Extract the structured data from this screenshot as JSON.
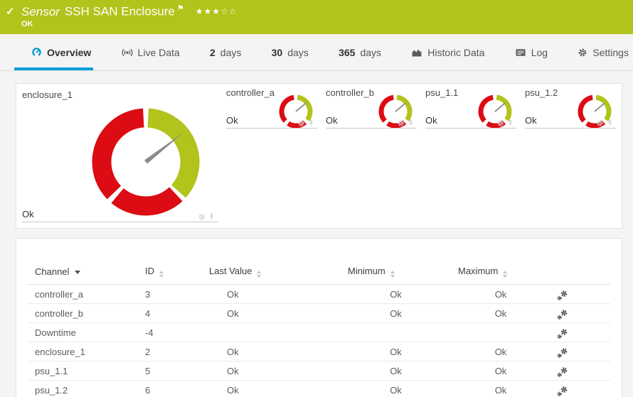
{
  "colors": {
    "status_green": "#b2c31b",
    "alarm_red": "#dc0b14",
    "accent_blue": "#0d9bd8",
    "needle_gray": "#8c8c8c"
  },
  "header": {
    "kind": "Sensor",
    "title": "SSH SAN Enclosure",
    "status": "OK",
    "stars_filled": 3,
    "stars_total": 5
  },
  "icons": {
    "status_check": "check-mark",
    "flag": "priority-flag",
    "overview": "gauge",
    "live_data": "broadcast",
    "historic_data": "area-chart",
    "log": "list",
    "settings": "gear",
    "tile_actions": [
      "gear",
      "pin"
    ],
    "row_action": "channel-settings-gears"
  },
  "tabs": [
    {
      "label": "Overview",
      "active": true
    },
    {
      "label": "Live Data"
    },
    {
      "num": "2",
      "label": "days"
    },
    {
      "num": "30",
      "label": "days"
    },
    {
      "num": "365",
      "label": "days"
    },
    {
      "label": "Historic Data"
    },
    {
      "label": "Log"
    },
    {
      "label": "Settings"
    }
  ],
  "gauges": [
    {
      "name": "enclosure_1",
      "value": "Ok",
      "size": "large",
      "needle_angle": 52,
      "segments": [
        {
          "color": "alarm_red",
          "from": 137,
          "to": 220
        },
        {
          "color": "alarm_red",
          "from": 226,
          "to": 357
        },
        {
          "color": "status_green",
          "from": 3,
          "to": 132
        }
      ]
    },
    {
      "name": "controller_a",
      "value": "Ok",
      "size": "small",
      "needle_angle": 50,
      "segments": [
        {
          "color": "alarm_red",
          "from": 140,
          "to": 213
        },
        {
          "color": "alarm_red",
          "from": 228,
          "to": 352
        },
        {
          "color": "status_green",
          "from": 6,
          "to": 126
        }
      ]
    },
    {
      "name": "controller_b",
      "value": "Ok",
      "size": "small",
      "needle_angle": 50,
      "segments": [
        {
          "color": "alarm_red",
          "from": 140,
          "to": 213
        },
        {
          "color": "alarm_red",
          "from": 228,
          "to": 352
        },
        {
          "color": "status_green",
          "from": 6,
          "to": 126
        }
      ]
    },
    {
      "name": "psu_1.1",
      "value": "Ok",
      "size": "small",
      "needle_angle": 50,
      "segments": [
        {
          "color": "alarm_red",
          "from": 140,
          "to": 213
        },
        {
          "color": "alarm_red",
          "from": 228,
          "to": 352
        },
        {
          "color": "status_green",
          "from": 6,
          "to": 126
        }
      ]
    },
    {
      "name": "psu_1.2",
      "value": "Ok",
      "size": "small",
      "needle_angle": 50,
      "segments": [
        {
          "color": "alarm_red",
          "from": 140,
          "to": 213
        },
        {
          "color": "alarm_red",
          "from": 228,
          "to": 352
        },
        {
          "color": "status_green",
          "from": 6,
          "to": 126
        }
      ]
    }
  ],
  "table": {
    "columns": [
      "Channel",
      "ID",
      "Last Value",
      "Minimum",
      "Maximum"
    ],
    "sort": {
      "column": "Channel",
      "direction": "desc"
    },
    "rows": [
      {
        "channel": "controller_a",
        "id": "3",
        "last": "Ok",
        "min": "Ok",
        "max": "Ok"
      },
      {
        "channel": "controller_b",
        "id": "4",
        "last": "Ok",
        "min": "Ok",
        "max": "Ok"
      },
      {
        "channel": "Downtime",
        "id": "-4",
        "last": "",
        "min": "",
        "max": ""
      },
      {
        "channel": "enclosure_1",
        "id": "2",
        "last": "Ok",
        "min": "Ok",
        "max": "Ok"
      },
      {
        "channel": "psu_1.1",
        "id": "5",
        "last": "Ok",
        "min": "Ok",
        "max": "Ok"
      },
      {
        "channel": "psu_1.2",
        "id": "6",
        "last": "Ok",
        "min": "Ok",
        "max": "Ok"
      }
    ]
  }
}
